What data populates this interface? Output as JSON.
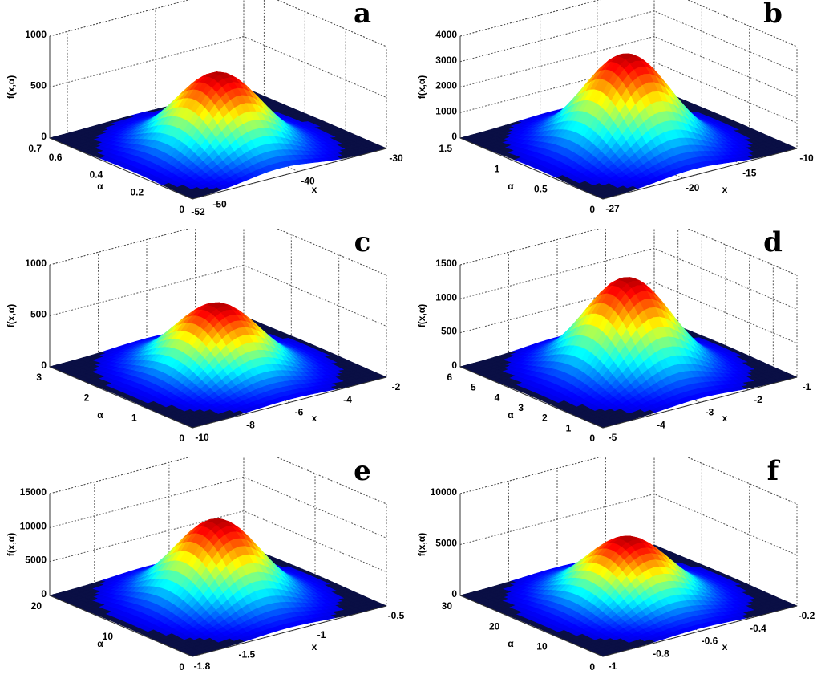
{
  "chart_data": [
    {
      "panel": "a",
      "type": "surface",
      "zlabel": "f(x,α)",
      "xlabel": "x",
      "ylabel": "α",
      "xlim": [
        -52,
        -30
      ],
      "ylim": [
        0,
        0.7
      ],
      "zlim": [
        0,
        1000
      ],
      "xticks": [
        "-52",
        "-50",
        "-40",
        "-30"
      ],
      "xtick_values": [
        -52,
        -50,
        -40,
        -30
      ],
      "yticks": [
        "0",
        "0.2",
        "0.4",
        "0.6",
        "0.7"
      ],
      "ytick_values": [
        0,
        0.2,
        0.4,
        0.6,
        0.7
      ],
      "zticks": [
        "0",
        "500",
        "1000"
      ],
      "ztick_values": [
        0,
        500,
        1000
      ],
      "peak": 790,
      "peak_x": -42,
      "peak_alpha": 0.3,
      "colormap": "jet",
      "grid": true
    },
    {
      "panel": "b",
      "type": "surface",
      "zlabel": "f(x,α)",
      "xlabel": "x",
      "ylabel": "α",
      "xlim": [
        -27,
        -10
      ],
      "ylim": [
        0,
        1.5
      ],
      "zlim": [
        0,
        4000
      ],
      "xticks": [
        "-27",
        "-20",
        "-15",
        "-10"
      ],
      "xtick_values": [
        -27,
        -20,
        -15,
        -10
      ],
      "yticks": [
        "0",
        "0.5",
        "1",
        "1.5"
      ],
      "ytick_values": [
        0,
        0.5,
        1,
        1.5
      ],
      "zticks": [
        "0",
        "1000",
        "2000",
        "3000",
        "4000"
      ],
      "ztick_values": [
        0,
        1000,
        2000,
        3000,
        4000
      ],
      "peak": 3800,
      "peak_x": -19,
      "peak_alpha": 0.7,
      "colormap": "jet",
      "grid": true
    },
    {
      "panel": "c",
      "type": "surface",
      "zlabel": "f(x,α)",
      "xlabel": "x",
      "ylabel": "α",
      "xlim": [
        -10,
        -2
      ],
      "ylim": [
        0,
        3
      ],
      "zlim": [
        0,
        1000
      ],
      "xticks": [
        "-10",
        "-8",
        "-6",
        "-4",
        "-2"
      ],
      "xtick_values": [
        -10,
        -8,
        -6,
        -4,
        -2
      ],
      "yticks": [
        "0",
        "1",
        "2",
        "3"
      ],
      "ytick_values": [
        0,
        1,
        2,
        3
      ],
      "zticks": [
        "0",
        "500",
        "1000"
      ],
      "ztick_values": [
        0,
        500,
        1000
      ],
      "peak": 700,
      "peak_x": -6,
      "peak_alpha": 1.5,
      "colormap": "jet",
      "grid": true
    },
    {
      "panel": "d",
      "type": "surface",
      "zlabel": "f(x,α)",
      "xlabel": "x",
      "ylabel": "α",
      "xlim": [
        -5,
        -1
      ],
      "ylim": [
        0,
        6
      ],
      "zlim": [
        0,
        1500
      ],
      "xticks": [
        "-5",
        "-4",
        "-3",
        "-2",
        "-1"
      ],
      "xtick_values": [
        -5,
        -4,
        -3,
        -2,
        -1
      ],
      "yticks": [
        "0",
        "1",
        "2",
        "3",
        "4",
        "5",
        "6"
      ],
      "ytick_values": [
        0,
        1,
        2,
        3,
        4,
        5,
        6
      ],
      "zticks": [
        "0",
        "500",
        "1000",
        "1500"
      ],
      "ztick_values": [
        0,
        500,
        1000,
        1500
      ],
      "peak": 1450,
      "peak_x": -3,
      "peak_alpha": 3,
      "colormap": "jet",
      "grid": true
    },
    {
      "panel": "e",
      "type": "surface",
      "zlabel": "f(x,α)",
      "xlabel": "x",
      "ylabel": "α",
      "xlim": [
        -1.8,
        -0.5
      ],
      "ylim": [
        0,
        20
      ],
      "zlim": [
        0,
        15000
      ],
      "xticks": [
        "-1.8",
        "-1.5",
        "-1",
        "-0.5"
      ],
      "xtick_values": [
        -1.8,
        -1.5,
        -1,
        -0.5
      ],
      "yticks": [
        "0",
        "10",
        "20"
      ],
      "ytick_values": [
        0,
        10,
        20
      ],
      "zticks": [
        "0",
        "5000",
        "10000",
        "15000"
      ],
      "ztick_values": [
        0,
        5000,
        10000,
        15000
      ],
      "peak": 12500,
      "peak_x": -1.15,
      "peak_alpha": 10,
      "colormap": "jet",
      "grid": true
    },
    {
      "panel": "f",
      "type": "surface",
      "zlabel": "f(x,α)",
      "xlabel": "x",
      "ylabel": "α",
      "xlim": [
        -1,
        -0.2
      ],
      "ylim": [
        0,
        30
      ],
      "zlim": [
        0,
        10000
      ],
      "xticks": [
        "-1",
        "-0.8",
        "-0.6",
        "-0.4",
        "-0.2"
      ],
      "xtick_values": [
        -1,
        -0.8,
        -0.6,
        -0.4,
        -0.2
      ],
      "yticks": [
        "0",
        "10",
        "20",
        "30"
      ],
      "ytick_values": [
        0,
        10,
        20,
        30
      ],
      "zticks": [
        "0",
        "5000",
        "10000"
      ],
      "ztick_values": [
        0,
        5000,
        10000
      ],
      "peak": 6500,
      "peak_x": -0.6,
      "peak_alpha": 15,
      "colormap": "jet",
      "grid": true
    }
  ]
}
